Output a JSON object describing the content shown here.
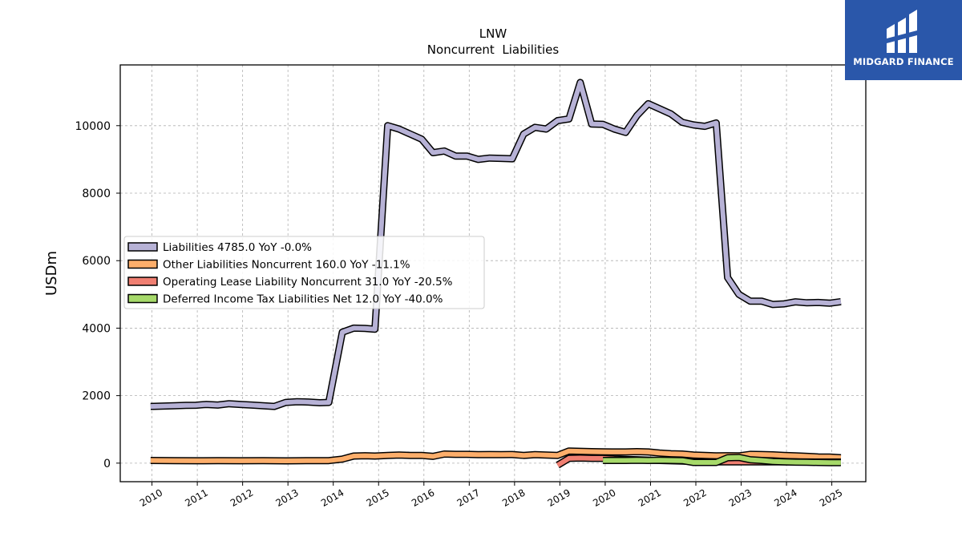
{
  "chart_data": {
    "type": "line",
    "title": "LNW",
    "subtitle": "Noncurrent  Liabilities",
    "ylabel": "USDm",
    "xlabel": "",
    "xlim": [
      2009.3,
      2025.75
    ],
    "ylim": [
      -550,
      11800
    ],
    "grid": true,
    "legend_position": "center-left",
    "x_ticks": [
      "2010",
      "2011",
      "2012",
      "2013",
      "2014",
      "2015",
      "2016",
      "2017",
      "2018",
      "2019",
      "2020",
      "2021",
      "2022",
      "2023",
      "2024",
      "2025"
    ],
    "y_ticks": [
      "0",
      "2000",
      "4000",
      "6000",
      "8000",
      "10000"
    ],
    "series": [
      {
        "name": "Liabilities",
        "legend": "Liabilities  4785.0 YoY -0.0%",
        "color": "#b7b2d6",
        "points": [
          [
            2009.97,
            1680
          ],
          [
            2010.2,
            1690
          ],
          [
            2010.5,
            1700
          ],
          [
            2010.75,
            1710
          ],
          [
            2010.97,
            1715
          ],
          [
            2011.2,
            1740
          ],
          [
            2011.45,
            1720
          ],
          [
            2011.7,
            1760
          ],
          [
            2011.95,
            1740
          ],
          [
            2012.2,
            1720
          ],
          [
            2012.45,
            1700
          ],
          [
            2012.7,
            1680
          ],
          [
            2012.95,
            1800
          ],
          [
            2013.2,
            1820
          ],
          [
            2013.45,
            1810
          ],
          [
            2013.7,
            1790
          ],
          [
            2013.9,
            1800
          ],
          [
            2014.2,
            3880
          ],
          [
            2014.45,
            4000
          ],
          [
            2014.7,
            3990
          ],
          [
            2014.92,
            3970
          ],
          [
            2015.2,
            10000
          ],
          [
            2015.45,
            9900
          ],
          [
            2015.7,
            9750
          ],
          [
            2015.95,
            9600
          ],
          [
            2016.2,
            9200
          ],
          [
            2016.45,
            9250
          ],
          [
            2016.7,
            9100
          ],
          [
            2016.95,
            9100
          ],
          [
            2017.2,
            9000
          ],
          [
            2017.45,
            9040
          ],
          [
            2017.7,
            9030
          ],
          [
            2017.95,
            9020
          ],
          [
            2018.2,
            9750
          ],
          [
            2018.45,
            9950
          ],
          [
            2018.7,
            9900
          ],
          [
            2018.95,
            10150
          ],
          [
            2019.2,
            10200
          ],
          [
            2019.45,
            11280
          ],
          [
            2019.7,
            10050
          ],
          [
            2019.95,
            10040
          ],
          [
            2020.2,
            9900
          ],
          [
            2020.45,
            9800
          ],
          [
            2020.7,
            10300
          ],
          [
            2020.95,
            10650
          ],
          [
            2021.2,
            10500
          ],
          [
            2021.45,
            10350
          ],
          [
            2021.7,
            10100
          ],
          [
            2021.95,
            10020
          ],
          [
            2022.2,
            9980
          ],
          [
            2022.45,
            10080
          ],
          [
            2022.7,
            5500
          ],
          [
            2022.95,
            5000
          ],
          [
            2023.2,
            4800
          ],
          [
            2023.45,
            4800
          ],
          [
            2023.7,
            4700
          ],
          [
            2023.95,
            4720
          ],
          [
            2024.2,
            4780
          ],
          [
            2024.45,
            4750
          ],
          [
            2024.7,
            4760
          ],
          [
            2024.95,
            4740
          ],
          [
            2025.2,
            4785
          ]
        ]
      },
      {
        "name": "Other Liabilities Noncurrent",
        "legend": "Other Liabilities Noncurrent  160.0 YoY -11.1%",
        "color": "#fdae6b",
        "points": [
          [
            2009.97,
            80
          ],
          [
            2010.5,
            75
          ],
          [
            2010.97,
            70
          ],
          [
            2011.45,
            75
          ],
          [
            2011.95,
            70
          ],
          [
            2012.45,
            72
          ],
          [
            2012.95,
            68
          ],
          [
            2013.2,
            70
          ],
          [
            2013.45,
            75
          ],
          [
            2013.9,
            75
          ],
          [
            2014.2,
            120
          ],
          [
            2014.45,
            210
          ],
          [
            2014.7,
            220
          ],
          [
            2014.92,
            210
          ],
          [
            2015.2,
            230
          ],
          [
            2015.45,
            240
          ],
          [
            2015.7,
            230
          ],
          [
            2015.95,
            230
          ],
          [
            2016.2,
            200
          ],
          [
            2016.45,
            270
          ],
          [
            2016.7,
            260
          ],
          [
            2016.95,
            260
          ],
          [
            2017.2,
            250
          ],
          [
            2017.45,
            255
          ],
          [
            2017.7,
            250
          ],
          [
            2017.95,
            255
          ],
          [
            2018.2,
            230
          ],
          [
            2018.45,
            250
          ],
          [
            2018.7,
            240
          ],
          [
            2018.95,
            230
          ],
          [
            2019.2,
            360
          ],
          [
            2019.45,
            350
          ],
          [
            2019.7,
            340
          ],
          [
            2019.95,
            335
          ],
          [
            2020.2,
            330
          ],
          [
            2020.45,
            330
          ],
          [
            2020.7,
            340
          ],
          [
            2020.95,
            330
          ],
          [
            2021.2,
            300
          ],
          [
            2021.45,
            280
          ],
          [
            2021.7,
            270
          ],
          [
            2021.95,
            240
          ],
          [
            2022.2,
            230
          ],
          [
            2022.45,
            215
          ],
          [
            2022.7,
            220
          ],
          [
            2022.95,
            215
          ],
          [
            2023.2,
            260
          ],
          [
            2023.45,
            255
          ],
          [
            2023.7,
            245
          ],
          [
            2023.95,
            230
          ],
          [
            2024.2,
            215
          ],
          [
            2024.45,
            200
          ],
          [
            2024.7,
            185
          ],
          [
            2024.95,
            180
          ],
          [
            2025.2,
            160
          ]
        ]
      },
      {
        "name": "Operating Lease Liability Noncurrent",
        "legend": "Operating Lease Liability Noncurrent  31.0 YoY -20.5%",
        "color": "#f07f72",
        "points": [
          [
            2018.95,
            -60
          ],
          [
            2019.2,
            140
          ],
          [
            2019.45,
            150
          ],
          [
            2019.7,
            140
          ],
          [
            2019.95,
            140
          ],
          [
            2020.2,
            120
          ],
          [
            2020.45,
            110
          ],
          [
            2020.7,
            100
          ],
          [
            2020.95,
            90
          ],
          [
            2021.2,
            80
          ],
          [
            2021.45,
            70
          ],
          [
            2021.7,
            60
          ],
          [
            2021.95,
            50
          ],
          [
            2022.2,
            40
          ],
          [
            2022.45,
            40
          ],
          [
            2022.7,
            40
          ],
          [
            2022.95,
            40
          ],
          [
            2023.2,
            40
          ],
          [
            2023.45,
            40
          ],
          [
            2023.7,
            39
          ],
          [
            2023.95,
            38
          ],
          [
            2024.2,
            36
          ],
          [
            2024.45,
            34
          ],
          [
            2024.7,
            32
          ],
          [
            2024.95,
            31
          ],
          [
            2025.2,
            31
          ]
        ]
      },
      {
        "name": "Deferred Income Tax Liabilities Net",
        "legend": "Deferred Income Tax Liabilities Net  12.0 YoY -40.0%",
        "color": "#a6d96a",
        "points": [
          [
            2019.95,
            80
          ],
          [
            2020.2,
            80
          ],
          [
            2020.45,
            80
          ],
          [
            2020.7,
            85
          ],
          [
            2020.95,
            80
          ],
          [
            2021.2,
            85
          ],
          [
            2021.45,
            80
          ],
          [
            2021.7,
            75
          ],
          [
            2021.95,
            20
          ],
          [
            2022.2,
            20
          ],
          [
            2022.45,
            20
          ],
          [
            2022.7,
            160
          ],
          [
            2022.95,
            170
          ],
          [
            2023.2,
            100
          ],
          [
            2023.45,
            80
          ],
          [
            2023.7,
            50
          ],
          [
            2023.95,
            40
          ],
          [
            2024.2,
            30
          ],
          [
            2024.45,
            25
          ],
          [
            2024.7,
            20
          ],
          [
            2024.95,
            15
          ],
          [
            2025.2,
            12
          ]
        ]
      }
    ]
  },
  "logo": {
    "text": "MIDGARD FINANCE",
    "color": "#2a57aa"
  }
}
